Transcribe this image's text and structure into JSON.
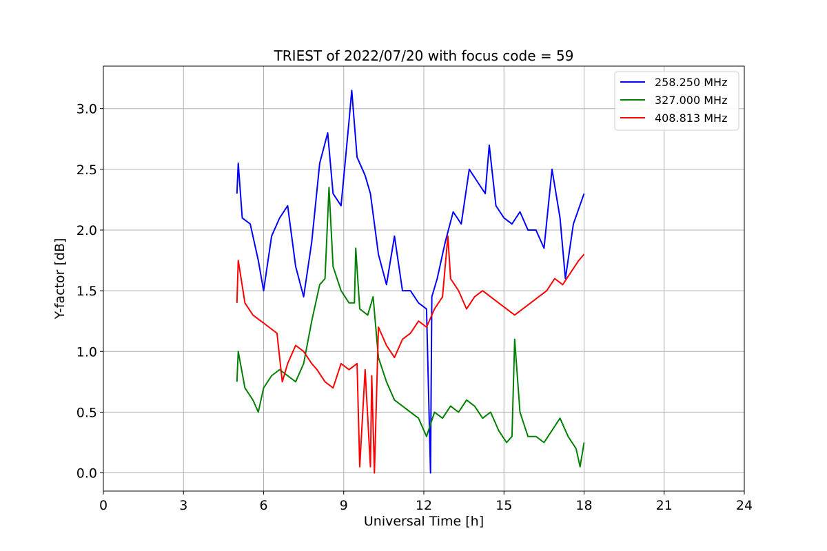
{
  "chart_data": {
    "type": "line",
    "title": "TRIEST of 2022/07/20 with focus code = 59",
    "xlabel": "Universal Time [h]",
    "ylabel": "Y-factor [dB]",
    "xlim": [
      0,
      24
    ],
    "ylim": [
      -0.15,
      3.35
    ],
    "xticks": [
      0,
      3,
      6,
      9,
      12,
      15,
      18,
      21,
      24
    ],
    "yticks": [
      0.0,
      0.5,
      1.0,
      1.5,
      2.0,
      2.5,
      3.0
    ],
    "xtick_labels": [
      "0",
      "3",
      "6",
      "9",
      "12",
      "15",
      "18",
      "21",
      "24"
    ],
    "ytick_labels": [
      "0.0",
      "0.5",
      "1.0",
      "1.5",
      "2.0",
      "2.5",
      "3.0"
    ],
    "grid": true,
    "legend_position": "top-right",
    "series": [
      {
        "name": "258.250 MHz",
        "color": "#0000ff",
        "x": [
          5.0,
          5.05,
          5.2,
          5.5,
          5.8,
          6.0,
          6.3,
          6.6,
          6.9,
          7.2,
          7.5,
          7.8,
          8.1,
          8.4,
          8.6,
          8.9,
          9.2,
          9.3,
          9.5,
          9.8,
          10.0,
          10.3,
          10.6,
          10.9,
          11.2,
          11.5,
          11.8,
          12.1,
          12.25,
          12.3,
          12.5,
          12.8,
          13.1,
          13.4,
          13.7,
          14.0,
          14.3,
          14.45,
          14.7,
          15.0,
          15.3,
          15.6,
          15.9,
          16.2,
          16.5,
          16.8,
          17.1,
          17.3,
          17.6,
          18.0
        ],
        "y": [
          2.3,
          2.55,
          2.1,
          2.05,
          1.75,
          1.5,
          1.95,
          2.1,
          2.2,
          1.7,
          1.45,
          1.9,
          2.55,
          2.8,
          2.3,
          2.2,
          2.9,
          3.15,
          2.6,
          2.45,
          2.3,
          1.8,
          1.55,
          1.95,
          1.5,
          1.5,
          1.4,
          1.35,
          0.0,
          1.45,
          1.6,
          1.9,
          2.15,
          2.05,
          2.5,
          2.4,
          2.3,
          2.7,
          2.2,
          2.1,
          2.05,
          2.15,
          2.0,
          2.0,
          1.85,
          2.5,
          2.1,
          1.6,
          2.05,
          2.3
        ]
      },
      {
        "name": "327.000 MHz",
        "color": "#008000",
        "x": [
          5.0,
          5.05,
          5.3,
          5.6,
          5.8,
          6.0,
          6.3,
          6.6,
          6.9,
          7.2,
          7.5,
          7.8,
          8.1,
          8.3,
          8.45,
          8.6,
          8.9,
          9.2,
          9.4,
          9.45,
          9.6,
          9.9,
          10.1,
          10.3,
          10.6,
          10.9,
          11.2,
          11.5,
          11.8,
          12.1,
          12.4,
          12.7,
          13.0,
          13.3,
          13.6,
          13.9,
          14.2,
          14.5,
          14.8,
          15.1,
          15.3,
          15.4,
          15.6,
          15.9,
          16.2,
          16.5,
          16.8,
          17.1,
          17.4,
          17.7,
          17.85,
          18.0
        ],
        "y": [
          0.75,
          1.0,
          0.7,
          0.6,
          0.5,
          0.7,
          0.8,
          0.85,
          0.8,
          0.75,
          0.9,
          1.25,
          1.55,
          1.6,
          2.35,
          1.7,
          1.5,
          1.4,
          1.4,
          1.85,
          1.35,
          1.3,
          1.45,
          0.95,
          0.75,
          0.6,
          0.55,
          0.5,
          0.45,
          0.3,
          0.5,
          0.45,
          0.55,
          0.5,
          0.6,
          0.55,
          0.45,
          0.5,
          0.35,
          0.25,
          0.3,
          1.1,
          0.5,
          0.3,
          0.3,
          0.25,
          0.35,
          0.45,
          0.3,
          0.2,
          0.05,
          0.25
        ]
      },
      {
        "name": "408.813 MHz",
        "color": "#ff0000",
        "x": [
          5.0,
          5.05,
          5.3,
          5.6,
          5.9,
          6.2,
          6.5,
          6.7,
          6.9,
          7.2,
          7.5,
          7.8,
          8.0,
          8.3,
          8.6,
          8.9,
          9.2,
          9.5,
          9.6,
          9.8,
          10.0,
          10.05,
          10.15,
          10.3,
          10.6,
          10.9,
          11.2,
          11.5,
          11.8,
          12.1,
          12.4,
          12.7,
          12.9,
          13.0,
          13.3,
          13.6,
          13.9,
          14.2,
          14.5,
          14.8,
          15.1,
          15.4,
          15.7,
          16.0,
          16.3,
          16.6,
          16.9,
          17.2,
          17.5,
          17.8,
          18.0
        ],
        "y": [
          1.4,
          1.75,
          1.4,
          1.3,
          1.25,
          1.2,
          1.15,
          0.75,
          0.9,
          1.05,
          1.0,
          0.9,
          0.85,
          0.75,
          0.7,
          0.9,
          0.85,
          0.9,
          0.05,
          0.85,
          0.05,
          0.8,
          0.0,
          1.2,
          1.05,
          0.95,
          1.1,
          1.15,
          1.25,
          1.2,
          1.35,
          1.45,
          1.95,
          1.6,
          1.5,
          1.35,
          1.45,
          1.5,
          1.45,
          1.4,
          1.35,
          1.3,
          1.35,
          1.4,
          1.45,
          1.5,
          1.6,
          1.55,
          1.65,
          1.75,
          1.8
        ]
      }
    ]
  }
}
